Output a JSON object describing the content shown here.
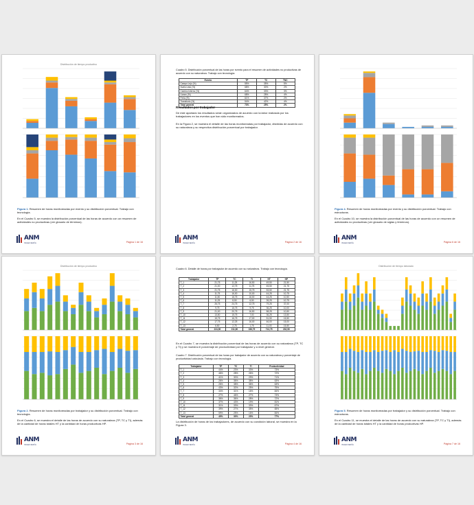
{
  "colors": {
    "blue": "#5b9bd5",
    "orange": "#ed7d31",
    "gray": "#a5a5a5",
    "yellow": "#ffc000",
    "navy": "#264478",
    "green": "#70ad47",
    "gridline": "#e6e6e6",
    "accent": "#2b6cb0",
    "page_number": "#c0392b"
  },
  "logo": {
    "brand": "ANM",
    "sub": "INGENIERÍA"
  },
  "pages": [
    {
      "chart_title": "Distribución de tiempo productivo",
      "caption_label": "Figura 1.",
      "caption": "Resumen de horas monitoreadas por evento y su distribución porcentual. Trabajo con tecnología.",
      "para": "En el Cuadro 5, se muestra la distribución porcentual de las horas de acuerdo con un resumen de actividades no productivas (ver glosario de términos).",
      "page_number": "Página 1 de 16"
    },
    {
      "table_title": "Cuadro 5. Distribución porcentual de las horas por evento para el resumen de actividades no productivas de acuerdo con su naturaleza. Trabajo con tecnología.",
      "table_headers": [
        "Evento",
        "TP",
        "TC",
        "TNC"
      ],
      "table_rows": [
        [
          "Campo Lejo (%)",
          "55%",
          "35%",
          "5%"
        ],
        [
          "Suelo Listo (%)",
          "68%",
          "30%",
          "2%"
        ],
        [
          "Camino Interno (%)",
          "64%",
          "33%",
          "3%"
        ],
        [
          "Llanos (%)",
          "68%",
          "28%",
          "4%"
        ],
        [
          "Feria (%)",
          "61%",
          "37%",
          "2%"
        ],
        [
          "Transitorio (%)",
          "54%",
          "42%",
          "4%"
        ],
        [
          "Total general",
          "73%",
          "25%",
          "2%"
        ]
      ],
      "heading": "Resultados por trabajador",
      "para1": "De este apartado los resultados serán organizados de acuerdo con la labor realizada por los trabajadores en los eventos que han sido monitoreados.",
      "para2": "En la Figura 2, se muestra el detalle de las horas monitoreadas por trabajador, divididas de acuerdo con su naturaleza y su respectiva distribución porcentual por trabajador.",
      "page_number": "Página 2 de 16"
    },
    {
      "chart_title": "",
      "caption_label": "Figura 4.",
      "caption": "Resumen de horas monitoreadas por evento y su distribución porcentual. Trabajo con estructuras.",
      "para": "En el Cuadro 10, se muestra la distribución porcentual de las horas de acuerdo con un resumen de actividades no productivas (ver glosario de siglas y términos).",
      "page_number": "Página 6 de 16"
    },
    {
      "chart_title": "Distribución de tiempo productivo",
      "caption_label": "Figura 2.",
      "caption": "Resumen de horas monitoreadas por trabajador y su distribución porcentual. Trabajo con tecnología.",
      "para": "En el Cuadro 6, se muestra el detalle de las horas de acuerdo con su naturaleza (TP, TC y TI), además de la cantidad de horas totales HT y la cantidad de horas productivas HP.",
      "page_number": "Página 3 de 16"
    },
    {
      "table_title": "Cuadro 6. Detalle de horas por trabajador de acuerdo con su naturaleza. Trabajo con tecnología.",
      "table_headers": [
        "Trabajador",
        "TP",
        "TC",
        "TI",
        "HT",
        "HP"
      ],
      "table_rows": [
        [
          "T_1",
          "21,75",
          "11,25",
          "16,50",
          "49,50",
          "21,50"
        ],
        [
          "T_2",
          "21,00",
          "12,75",
          "11,75",
          "45,50",
          "21,75"
        ],
        [
          "T_3",
          "21,75",
          "16,00",
          "15,75",
          "53,50",
          "21,75"
        ],
        [
          "T_4",
          "11,75",
          "16,00",
          "10,00",
          "44,25",
          "10,75"
        ],
        [
          "T_5",
          "11,50",
          "16,75",
          "16,00",
          "44,25",
          "10,50"
        ],
        [
          "T_6",
          "11,25",
          "8,50",
          "6,50",
          "26,25",
          "10,75"
        ],
        [
          "T_7",
          "26,75",
          "24,75",
          "12,75",
          "79,25",
          "37,00"
        ],
        [
          "T_8",
          "9,75",
          "16,75",
          "9,75",
          "36,25",
          "10,00"
        ],
        [
          "T_9",
          "21,00",
          "20,75",
          "16,50",
          "58,25",
          "10,50"
        ],
        [
          "T_10",
          "13,50",
          "15,75",
          "7,00",
          "36,25",
          "13,50"
        ],
        [
          "T_11",
          "15,75",
          "16,75",
          "17,00",
          "51,50",
          "15,50"
        ],
        [
          "T_12",
          "17,75",
          "12,25",
          "16,00",
          "46,00",
          "15,00"
        ],
        [
          "T_13",
          "6,50",
          "2,75",
          "1,75",
          "11,00",
          "15,50"
        ],
        [
          "Total general",
          "224,50",
          "211,50",
          "156,75",
          "712,75",
          "202,50"
        ]
      ],
      "para1": "En el Cuadro 7, se muestra la distribución porcentual de las horas de acuerdo con su naturaleza (TP, TC y TI) y se muestra el porcentaje de productividad por trabajador y a nivel general.",
      "table2_title": "Cuadro 7. Distribución porcentual de las horas por trabajador de acuerdo con su naturaleza y porcentaje de productividad calculada. Trabajo con tecnología.",
      "table2_headers": [
        "Trabajador",
        "TP",
        "TC",
        "TI",
        "Productividad"
      ],
      "table2_rows": [
        [
          "T_1",
          "44%",
          "23%",
          "33%",
          "73%"
        ],
        [
          "T_2",
          "46%",
          "28%",
          "26%",
          "72%"
        ],
        [
          "T_3",
          "41%",
          "30%",
          "29%",
          "71%"
        ],
        [
          "T_4",
          "26%",
          "36%",
          "38%",
          "63%"
        ],
        [
          "T_5",
          "26%",
          "38%",
          "36%",
          "63%"
        ],
        [
          "T_6",
          "43%",
          "32%",
          "25%",
          "75%"
        ],
        [
          "T_7",
          "34%",
          "31%",
          "16%",
          "84%"
        ],
        [
          "T_8",
          "27%",
          "46%",
          "27%",
          "73%"
        ],
        [
          "T_9",
          "36%",
          "36%",
          "28%",
          "72%"
        ],
        [
          "T_10",
          "37%",
          "43%",
          "19%",
          "81%"
        ],
        [
          "T_11",
          "31%",
          "33%",
          "33%",
          "67%"
        ],
        [
          "T_12",
          "39%",
          "27%",
          "35%",
          "65%"
        ],
        [
          "T_13",
          "59%",
          "25%",
          "16%",
          "84%"
        ],
        [
          "Total general",
          "40%",
          "30%",
          "23%",
          "77%"
        ]
      ],
      "para2": "La distribución de horas de los trabajadores, de acuerdo con su condición laboral, se muestra en la Figura 3.",
      "page_number": "Página 4 de 16"
    },
    {
      "chart_title": "Distribución de tiempo laborado",
      "caption_label": "Figura 5.",
      "caption": "Resumen de horas monitoreadas por trabajador y su distribución porcentual. Trabajo con estructuras.",
      "para": "En el Cuadro 11, se muestra el detalle de las horas de acuerdo con su naturaleza (TP, TC y TI), además de la cantidad de horas totales HT y la cantidad de horas productivas HP.",
      "page_number": "Página 7 de 16"
    }
  ],
  "chart_data": [
    {
      "type": "bar",
      "title": "Distribución de tiempo productivo",
      "series": [
        {
          "name": "",
          "color": "blue",
          "values": [
            3,
            22,
            12,
            4,
            14,
            10
          ]
        },
        {
          "name": "",
          "color": "orange",
          "values": [
            1,
            3,
            3,
            1,
            10,
            6
          ]
        },
        {
          "name": "",
          "color": "gray",
          "values": [
            0,
            1,
            1,
            0,
            1,
            1
          ]
        },
        {
          "name": "",
          "color": "yellow",
          "values": [
            1,
            2,
            1,
            1,
            1,
            1
          ]
        },
        {
          "name": "",
          "color": "navy",
          "values": [
            0,
            0,
            0,
            0,
            5,
            0
          ]
        }
      ],
      "pct": [
        {
          "blue": 30,
          "orange": 40,
          "gray": 5,
          "yellow": 5,
          "navy": 20
        },
        {
          "blue": 75,
          "orange": 15,
          "gray": 5,
          "yellow": 5,
          "navy": 0
        },
        {
          "blue": 68,
          "orange": 24,
          "gray": 4,
          "yellow": 4,
          "navy": 0
        },
        {
          "blue": 62,
          "orange": 28,
          "gray": 5,
          "yellow": 5,
          "navy": 0
        },
        {
          "blue": 42,
          "orange": 42,
          "gray": 4,
          "yellow": 4,
          "navy": 8
        },
        {
          "blue": 40,
          "orange": 48,
          "gray": 6,
          "yellow": 6,
          "navy": 0
        }
      ]
    },
    {
      "type": "bar",
      "title": "",
      "series": [
        {
          "name": "",
          "color": "blue",
          "values": [
            4,
            25,
            3,
            1,
            1,
            1
          ]
        },
        {
          "name": "",
          "color": "orange",
          "values": [
            3,
            11,
            0,
            0,
            0,
            0
          ]
        },
        {
          "name": "",
          "color": "gray",
          "values": [
            2,
            3,
            1,
            0,
            1,
            1
          ]
        },
        {
          "name": "",
          "color": "yellow",
          "values": [
            1,
            1,
            0,
            0,
            0,
            0
          ]
        }
      ],
      "pct": [
        {
          "blue": 25,
          "orange": 45,
          "gray": 25,
          "yellow": 5
        },
        {
          "blue": 30,
          "orange": 38,
          "gray": 27,
          "yellow": 5
        },
        {
          "blue": 20,
          "orange": 15,
          "gray": 65,
          "yellow": 0
        },
        {
          "blue": 5,
          "orange": 40,
          "gray": 55,
          "yellow": 0
        },
        {
          "blue": 5,
          "orange": 40,
          "gray": 55,
          "yellow": 0
        },
        {
          "blue": 10,
          "orange": 45,
          "gray": 45,
          "yellow": 0
        }
      ]
    },
    {
      "type": "bar",
      "title": "Distribución de tiempo productivo",
      "series": [
        {
          "name": "",
          "color": "green",
          "values": [
            6,
            7,
            6,
            8,
            9,
            6,
            5,
            8,
            6,
            4,
            5,
            9,
            6,
            5,
            4
          ]
        },
        {
          "name": "",
          "color": "blue",
          "values": [
            4,
            5,
            4,
            5,
            5,
            3,
            2,
            4,
            3,
            2,
            3,
            5,
            3,
            3,
            2
          ]
        },
        {
          "name": "",
          "color": "yellow",
          "values": [
            3,
            3,
            3,
            4,
            4,
            2,
            1,
            3,
            2,
            1,
            2,
            4,
            2,
            2,
            1
          ]
        }
      ],
      "pct": [
        {
          "green": 45,
          "blue": 30,
          "yellow": 25
        },
        {
          "green": 40,
          "blue": 35,
          "yellow": 25
        },
        {
          "green": 42,
          "blue": 33,
          "yellow": 25
        },
        {
          "green": 38,
          "blue": 38,
          "yellow": 24
        },
        {
          "green": 40,
          "blue": 35,
          "yellow": 25
        },
        {
          "green": 48,
          "blue": 30,
          "yellow": 22
        },
        {
          "green": 55,
          "blue": 28,
          "yellow": 17
        },
        {
          "green": 42,
          "blue": 33,
          "yellow": 25
        },
        {
          "green": 45,
          "blue": 30,
          "yellow": 25
        },
        {
          "green": 50,
          "blue": 28,
          "yellow": 22
        },
        {
          "green": 40,
          "blue": 40,
          "yellow": 20
        },
        {
          "green": 45,
          "blue": 30,
          "yellow": 25
        },
        {
          "green": 50,
          "blue": 30,
          "yellow": 20
        },
        {
          "green": 42,
          "blue": 35,
          "yellow": 23
        },
        {
          "green": 48,
          "blue": 30,
          "yellow": 22
        }
      ]
    },
    {
      "type": "bar",
      "title": "Distribución de tiempo laborado",
      "series": [
        {
          "name": "",
          "color": "green",
          "values": [
            5,
            7,
            5,
            6,
            8,
            5,
            6,
            5,
            7,
            4,
            3,
            2,
            1,
            1,
            1,
            4,
            7,
            6,
            5,
            4,
            6,
            5,
            7,
            4,
            5,
            6,
            7,
            2,
            5
          ]
        },
        {
          "name": "",
          "color": "blue",
          "values": [
            2,
            3,
            2,
            3,
            3,
            2,
            3,
            2,
            3,
            1,
            1,
            1,
            0,
            0,
            0,
            2,
            3,
            3,
            2,
            2,
            3,
            2,
            3,
            2,
            2,
            3,
            3,
            1,
            2
          ]
        },
        {
          "name": "",
          "color": "yellow",
          "values": [
            2,
            3,
            2,
            2,
            3,
            2,
            3,
            2,
            3,
            1,
            1,
            1,
            0,
            0,
            0,
            2,
            3,
            2,
            2,
            2,
            3,
            2,
            3,
            2,
            2,
            2,
            3,
            1,
            2
          ]
        }
      ],
      "pct": [
        {
          "green": 45,
          "blue": 30,
          "yellow": 25
        },
        {
          "green": 40,
          "blue": 35,
          "yellow": 25
        },
        {
          "green": 50,
          "blue": 30,
          "yellow": 20
        },
        {
          "green": 45,
          "blue": 32,
          "yellow": 23
        },
        {
          "green": 42,
          "blue": 33,
          "yellow": 25
        },
        {
          "green": 48,
          "blue": 30,
          "yellow": 22
        },
        {
          "green": 40,
          "blue": 35,
          "yellow": 25
        },
        {
          "green": 45,
          "blue": 30,
          "yellow": 25
        },
        {
          "green": 50,
          "blue": 28,
          "yellow": 22
        },
        {
          "green": 45,
          "blue": 30,
          "yellow": 25
        },
        {
          "green": 42,
          "blue": 35,
          "yellow": 23
        },
        {
          "green": 48,
          "blue": 30,
          "yellow": 22
        },
        {
          "green": 45,
          "blue": 30,
          "yellow": 25
        },
        {
          "green": 40,
          "blue": 38,
          "yellow": 22
        },
        {
          "green": 45,
          "blue": 30,
          "yellow": 25
        },
        {
          "green": 50,
          "blue": 30,
          "yellow": 20
        },
        {
          "green": 42,
          "blue": 35,
          "yellow": 23
        },
        {
          "green": 45,
          "blue": 30,
          "yellow": 25
        },
        {
          "green": 48,
          "blue": 28,
          "yellow": 24
        },
        {
          "green": 45,
          "blue": 32,
          "yellow": 23
        },
        {
          "green": 40,
          "blue": 35,
          "yellow": 25
        },
        {
          "green": 45,
          "blue": 30,
          "yellow": 25
        },
        {
          "green": 50,
          "blue": 28,
          "yellow": 22
        },
        {
          "green": 42,
          "blue": 35,
          "yellow": 23
        },
        {
          "green": 45,
          "blue": 30,
          "yellow": 25
        },
        {
          "green": 48,
          "blue": 30,
          "yellow": 22
        },
        {
          "green": 45,
          "blue": 32,
          "yellow": 23
        },
        {
          "green": 40,
          "blue": 35,
          "yellow": 25
        },
        {
          "green": 45,
          "blue": 30,
          "yellow": 25
        }
      ]
    }
  ]
}
